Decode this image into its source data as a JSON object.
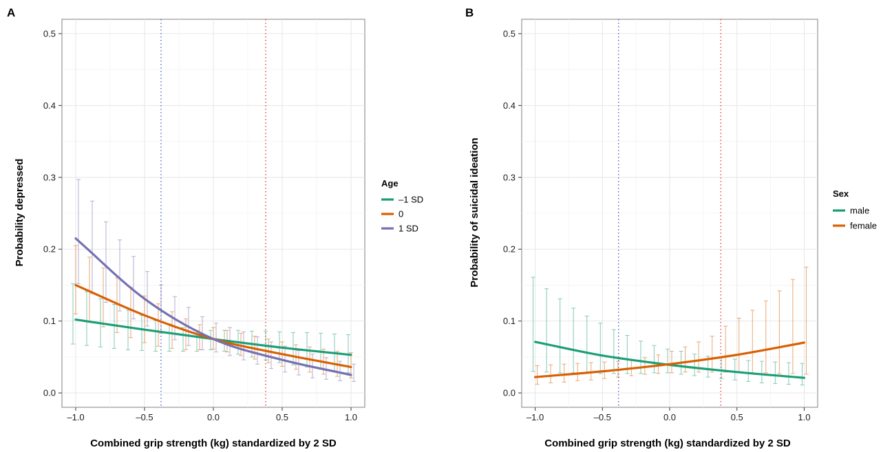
{
  "colors": {
    "green": "#1b9e77",
    "orange": "#d95f02",
    "purple": "#7570b3",
    "ref_blue": "#4b61c0",
    "ref_red": "#e03b3b"
  },
  "chart_data": [
    {
      "tag": "A",
      "type": "line",
      "xlabel": "Combined grip strength (kg) standardized by 2 SD",
      "ylabel": "Probability depressed",
      "xlim": [
        -1.1,
        1.1
      ],
      "ylim": [
        -0.02,
        0.52
      ],
      "x_ticks": [
        -1.0,
        -0.5,
        0.0,
        0.5,
        1.0
      ],
      "x_tick_labels": [
        "–1.0",
        "–0.5",
        "0.0",
        "0.5",
        "1.0"
      ],
      "y_ticks": [
        0.0,
        0.1,
        0.2,
        0.3,
        0.4,
        0.5
      ],
      "y_tick_labels": [
        "0.0",
        "0.1",
        "0.2",
        "0.3",
        "0.4",
        "0.5"
      ],
      "grid": true,
      "reference_lines_x": [
        -0.38,
        0.38
      ],
      "legend": {
        "title": "Age",
        "position": "right",
        "entries": [
          {
            "label": "–1 SD",
            "color": "#1b9e77"
          },
          {
            "label": "0",
            "color": "#d95f02"
          },
          {
            "label": "1 SD",
            "color": "#7570b3"
          }
        ]
      },
      "errorbar_x": [
        -1.0,
        -0.9,
        -0.8,
        -0.7,
        -0.6,
        -0.5,
        -0.4,
        -0.3,
        -0.2,
        -0.1,
        0.0,
        0.1,
        0.2,
        0.3,
        0.4,
        0.5,
        0.6,
        0.7,
        0.8,
        0.9,
        1.0
      ],
      "series": [
        {
          "name": "–1 SD",
          "color": "#1b9e77",
          "x": [
            -1.0,
            -0.5,
            0.0,
            0.5,
            1.0
          ],
          "y": [
            0.102,
            0.088,
            0.075,
            0.063,
            0.053
          ],
          "ci_lower": [
            0.068,
            0.066,
            0.064,
            0.062,
            0.06,
            0.059,
            0.058,
            0.058,
            0.058,
            0.058,
            0.06,
            0.058,
            0.054,
            0.05,
            0.046,
            0.042,
            0.039,
            0.036,
            0.033,
            0.03,
            0.028
          ],
          "ci_upper": [
            0.152,
            0.141,
            0.131,
            0.123,
            0.115,
            0.108,
            0.101,
            0.096,
            0.091,
            0.087,
            0.087,
            0.087,
            0.087,
            0.086,
            0.086,
            0.085,
            0.084,
            0.084,
            0.083,
            0.082,
            0.081
          ]
        },
        {
          "name": "0",
          "color": "#d95f02",
          "x": [
            -1.0,
            -0.5,
            0.0,
            0.5,
            1.0
          ],
          "y": [
            0.15,
            0.108,
            0.075,
            0.054,
            0.036
          ],
          "ci_lower": [
            0.11,
            0.1,
            0.092,
            0.084,
            0.077,
            0.07,
            0.065,
            0.062,
            0.06,
            0.06,
            0.061,
            0.057,
            0.052,
            0.047,
            0.042,
            0.037,
            0.033,
            0.029,
            0.026,
            0.023,
            0.021
          ],
          "ci_upper": [
            0.205,
            0.189,
            0.174,
            0.16,
            0.147,
            0.135,
            0.124,
            0.113,
            0.103,
            0.095,
            0.091,
            0.087,
            0.083,
            0.079,
            0.075,
            0.071,
            0.067,
            0.064,
            0.061,
            0.058,
            0.056
          ]
        },
        {
          "name": "1 SD",
          "color": "#7570b3",
          "x": [
            -1.0,
            -0.5,
            0.0,
            0.5,
            1.0
          ],
          "y": [
            0.215,
            0.131,
            0.075,
            0.046,
            0.025
          ],
          "ci_lower": [
            0.152,
            0.138,
            0.126,
            0.114,
            0.103,
            0.093,
            0.083,
            0.074,
            0.066,
            0.06,
            0.057,
            0.052,
            0.046,
            0.04,
            0.034,
            0.029,
            0.025,
            0.021,
            0.019,
            0.017,
            0.016
          ],
          "ci_upper": [
            0.297,
            0.267,
            0.238,
            0.213,
            0.19,
            0.169,
            0.15,
            0.134,
            0.119,
            0.106,
            0.097,
            0.091,
            0.085,
            0.078,
            0.071,
            0.065,
            0.059,
            0.054,
            0.049,
            0.044,
            0.04
          ]
        }
      ]
    },
    {
      "tag": "B",
      "type": "line",
      "xlabel": "Combined grip strength (kg) standardized by 2 SD",
      "ylabel": "Probability of suicidal ideation",
      "xlim": [
        -1.1,
        1.1
      ],
      "ylim": [
        -0.02,
        0.52
      ],
      "x_ticks": [
        -1.0,
        -0.5,
        0.0,
        0.5,
        1.0
      ],
      "x_tick_labels": [
        "–1.0",
        "–0.5",
        "0.0",
        "0.5",
        "1.0"
      ],
      "y_ticks": [
        0.0,
        0.1,
        0.2,
        0.3,
        0.4,
        0.5
      ],
      "y_tick_labels": [
        "0.0",
        "0.1",
        "0.2",
        "0.3",
        "0.4",
        "0.5"
      ],
      "grid": true,
      "reference_lines_x": [
        -0.38,
        0.38
      ],
      "legend": {
        "title": "Sex",
        "position": "right",
        "entries": [
          {
            "label": "male",
            "color": "#1b9e77"
          },
          {
            "label": "female",
            "color": "#d95f02"
          }
        ]
      },
      "errorbar_x": [
        -1.0,
        -0.9,
        -0.8,
        -0.7,
        -0.6,
        -0.5,
        -0.4,
        -0.3,
        -0.2,
        -0.1,
        0.0,
        0.1,
        0.2,
        0.3,
        0.4,
        0.5,
        0.6,
        0.7,
        0.8,
        0.9,
        1.0
      ],
      "series": [
        {
          "name": "male",
          "color": "#1b9e77",
          "x": [
            -1.0,
            -0.5,
            0.0,
            0.5,
            1.0
          ],
          "y": [
            0.071,
            0.052,
            0.039,
            0.029,
            0.021
          ],
          "ci_lower": [
            0.03,
            0.029,
            0.028,
            0.028,
            0.027,
            0.027,
            0.027,
            0.027,
            0.027,
            0.028,
            0.028,
            0.026,
            0.024,
            0.022,
            0.02,
            0.018,
            0.016,
            0.014,
            0.013,
            0.012,
            0.011
          ],
          "ci_upper": [
            0.161,
            0.145,
            0.131,
            0.118,
            0.107,
            0.097,
            0.088,
            0.08,
            0.072,
            0.066,
            0.061,
            0.058,
            0.054,
            0.051,
            0.049,
            0.047,
            0.045,
            0.044,
            0.043,
            0.042,
            0.041
          ]
        },
        {
          "name": "female",
          "color": "#d95f02",
          "x": [
            -1.0,
            -0.5,
            0.0,
            0.5,
            1.0
          ],
          "y": [
            0.022,
            0.03,
            0.04,
            0.053,
            0.07
          ],
          "ci_lower": [
            0.012,
            0.014,
            0.015,
            0.017,
            0.018,
            0.02,
            0.022,
            0.024,
            0.026,
            0.027,
            0.028,
            0.029,
            0.029,
            0.029,
            0.029,
            0.029,
            0.028,
            0.028,
            0.027,
            0.027,
            0.026
          ],
          "ci_upper": [
            0.038,
            0.039,
            0.04,
            0.041,
            0.042,
            0.043,
            0.044,
            0.046,
            0.049,
            0.053,
            0.058,
            0.064,
            0.071,
            0.079,
            0.093,
            0.104,
            0.115,
            0.128,
            0.142,
            0.158,
            0.175
          ]
        }
      ]
    }
  ]
}
